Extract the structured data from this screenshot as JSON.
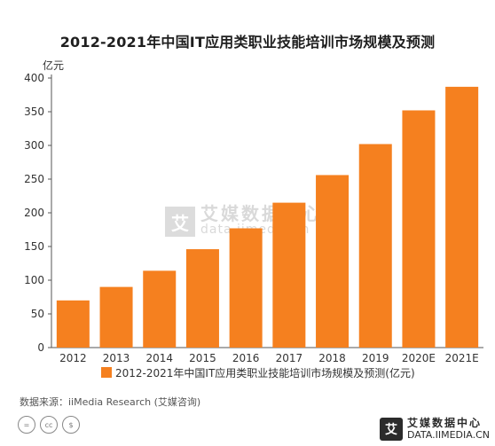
{
  "chart_data": {
    "type": "bar",
    "title": "2012-2021年中国IT应用类职业技能培训市场规模及预测",
    "ylabel": "亿元",
    "categories": [
      "2012",
      "2013",
      "2014",
      "2015",
      "2016",
      "2017",
      "2018",
      "2019",
      "2020E",
      "2021E"
    ],
    "series": [
      {
        "name": "2012-2021年中国IT应用类职业技能培训市场规模及预测(亿元)",
        "values": [
          70,
          90,
          114,
          146,
          177,
          215,
          256,
          302,
          352,
          387
        ],
        "color": "#f5801f"
      }
    ],
    "ylim": [
      0,
      400
    ],
    "yticks": [
      0,
      50,
      100,
      150,
      200,
      250,
      300,
      350,
      400
    ],
    "grid": false,
    "legend": "bottom"
  },
  "source": "数据来源：iiMedia Research (艾媒咨询)",
  "watermark": {
    "cn": "艾媒数据中心",
    "en": "data.iimedia.cn"
  },
  "brand": {
    "logo": "艾",
    "cn": "艾媒数据中心",
    "en": "DATA.IIMEDIA.CN"
  },
  "license_icons": [
    "=",
    "cc",
    "$"
  ]
}
